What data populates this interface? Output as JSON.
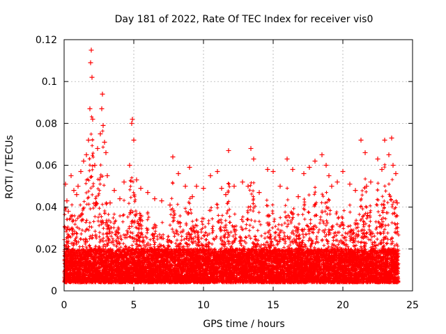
{
  "chart_data": {
    "type": "scatter",
    "title": "Day 181 of 2022, Rate Of TEC Index for receiver vis0",
    "xlabel": "GPS time / hours",
    "ylabel": "ROTI / TECUs",
    "xlim": [
      0,
      25
    ],
    "ylim": [
      0,
      0.12
    ],
    "grid": true,
    "marker": "+",
    "color": "#ff0000",
    "xticks": [
      0,
      5,
      10,
      15,
      20,
      25
    ],
    "xtick_labels": [
      "0",
      "5",
      "10",
      "15",
      "20",
      "25"
    ],
    "yticks": [
      0,
      0.02,
      0.04,
      0.06,
      0.08,
      0.1,
      0.12
    ],
    "ytick_labels": [
      "0",
      "0.02",
      "0.04",
      "0.06",
      "0.08",
      "0.1",
      "0.12"
    ],
    "series": [
      {
        "name": "ROTI",
        "x": [
          0.1,
          0.2,
          0.3,
          0.5,
          0.7,
          0.9,
          1.0,
          1.2,
          1.4,
          1.6,
          1.75,
          1.85,
          1.9,
          1.95,
          2.0,
          2.05,
          2.2,
          2.4,
          2.6,
          2.7,
          2.75,
          2.8,
          2.9,
          3.0,
          3.1,
          3.3,
          3.6,
          4.0,
          4.3,
          4.7,
          4.85,
          4.9,
          5.0,
          5.2,
          5.5,
          6.0,
          6.5,
          7.0,
          7.6,
          7.8,
          8.2,
          8.7,
          9.0,
          9.2,
          9.5,
          10.0,
          10.5,
          11.0,
          11.3,
          11.6,
          11.8,
          12.2,
          12.8,
          13.2,
          13.4,
          13.6,
          14.0,
          14.6,
          15.0,
          15.5,
          16.0,
          16.4,
          16.8,
          17.2,
          17.6,
          18.0,
          18.5,
          18.8,
          19.0,
          19.2,
          19.6,
          20.0,
          20.5,
          20.9,
          21.3,
          21.6,
          21.7,
          22.0,
          22.5,
          22.8,
          23.0,
          23.3,
          23.5,
          23.6,
          23.8,
          23.9
        ],
        "y": [
          0.051,
          0.043,
          0.038,
          0.055,
          0.048,
          0.046,
          0.05,
          0.057,
          0.062,
          0.065,
          0.072,
          0.087,
          0.109,
          0.115,
          0.102,
          0.082,
          0.06,
          0.068,
          0.075,
          0.087,
          0.094,
          0.079,
          0.071,
          0.066,
          0.055,
          0.042,
          0.048,
          0.044,
          0.052,
          0.06,
          0.08,
          0.082,
          0.072,
          0.053,
          0.049,
          0.047,
          0.044,
          0.043,
          0.041,
          0.064,
          0.056,
          0.05,
          0.059,
          0.045,
          0.05,
          0.049,
          0.055,
          0.057,
          0.049,
          0.046,
          0.067,
          0.05,
          0.052,
          0.05,
          0.068,
          0.063,
          0.047,
          0.058,
          0.057,
          0.05,
          0.063,
          0.058,
          0.045,
          0.056,
          0.059,
          0.062,
          0.065,
          0.06,
          0.055,
          0.05,
          0.052,
          0.057,
          0.051,
          0.048,
          0.072,
          0.066,
          0.05,
          0.052,
          0.063,
          0.058,
          0.072,
          0.065,
          0.073,
          0.06,
          0.056,
          0.042
        ]
      }
    ],
    "background_band": {
      "min": 0.004,
      "max_typical": 0.02,
      "point_density_per_hour": 500
    }
  }
}
